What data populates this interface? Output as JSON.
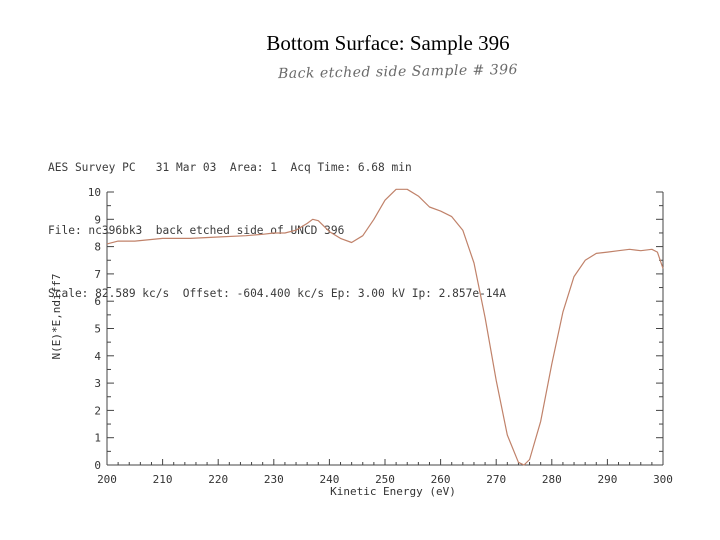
{
  "slide": {
    "title": "Bottom Surface: Sample 396",
    "handwritten_note": "Back etched side Sample # 396"
  },
  "header": {
    "line1": "AES Survey PC   31 Mar 03  Area: 1  Acq Time: 6.68 min",
    "line2": "File: nc396bk3  back etched side of UNCD 396",
    "line3": "Scale: 82.589 kc/s  Offset: -604.400 kc/s Ep: 3.00 kV Ip: 2.857e-14A"
  },
  "chart_data": {
    "type": "line",
    "xlabel": "Kinetic Energy (eV)",
    "ylabel": "N(E)*E,ndiff7",
    "xlim": [
      200,
      300
    ],
    "ylim": [
      0,
      10
    ],
    "x_ticks": [
      200,
      210,
      220,
      230,
      240,
      250,
      260,
      270,
      280,
      290,
      300
    ],
    "y_ticks": [
      0,
      1,
      2,
      3,
      4,
      5,
      6,
      7,
      8,
      9,
      10
    ],
    "grid": false,
    "line_color": "#c0826a",
    "series": [
      {
        "x": [
          200,
          202,
          205,
          210,
          215,
          220,
          225,
          228,
          230,
          232,
          234,
          236,
          237,
          238,
          240,
          242,
          244,
          246,
          248,
          250,
          252,
          254,
          256,
          258,
          260,
          262,
          264,
          266,
          268,
          270,
          272,
          274,
          275,
          276,
          278,
          280,
          282,
          284,
          286,
          288,
          290,
          292,
          294,
          296,
          298,
          299,
          300
        ],
        "y": [
          8.1,
          8.2,
          8.2,
          8.3,
          8.3,
          8.35,
          8.4,
          8.45,
          8.5,
          8.5,
          8.6,
          8.85,
          9.0,
          8.95,
          8.55,
          8.3,
          8.15,
          8.4,
          9.0,
          9.7,
          10.1,
          10.1,
          9.85,
          9.45,
          9.3,
          9.1,
          8.6,
          7.4,
          5.4,
          3.1,
          1.1,
          0.1,
          0.0,
          0.2,
          1.6,
          3.7,
          5.6,
          6.9,
          7.5,
          7.75,
          7.8,
          7.85,
          7.9,
          7.85,
          7.9,
          7.8,
          7.2
        ]
      }
    ]
  }
}
